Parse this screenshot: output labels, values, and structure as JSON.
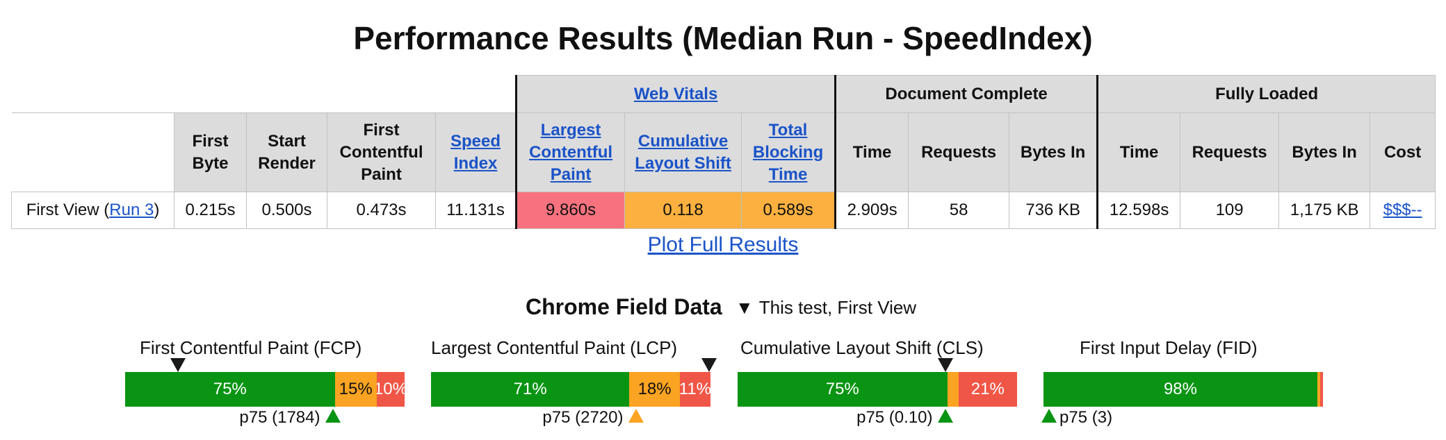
{
  "title": "Performance Results (Median Run - SpeedIndex)",
  "table": {
    "groups": {
      "web_vitals": "Web Vitals",
      "document_complete": "Document Complete",
      "fully_loaded": "Fully Loaded"
    },
    "columns": {
      "first_byte": "First Byte",
      "start_render": "Start Render",
      "first_contentful_paint": "First Contentful Paint",
      "speed_index": "Speed Index",
      "largest_contentful_paint": "Largest Contentful Paint",
      "cumulative_layout_shift": "Cumulative Layout Shift",
      "total_blocking_time": "Total Blocking Time",
      "dc_time": "Time",
      "dc_requests": "Requests",
      "dc_bytes_in": "Bytes In",
      "fl_time": "Time",
      "fl_requests": "Requests",
      "fl_bytes_in": "Bytes In",
      "cost": "Cost"
    },
    "row": {
      "label_prefix": "First View (",
      "run_link": "Run 3",
      "label_suffix": ")",
      "first_byte": "0.215s",
      "start_render": "0.500s",
      "first_contentful_paint": "0.473s",
      "speed_index": "11.131s",
      "largest_contentful_paint": "9.860s",
      "cumulative_layout_shift": "0.118",
      "total_blocking_time": "0.589s",
      "dc_time": "2.909s",
      "dc_requests": "58",
      "dc_bytes_in": "736 KB",
      "fl_time": "12.598s",
      "fl_requests": "109",
      "fl_bytes_in": "1,175 KB",
      "cost": "$$$--"
    }
  },
  "plot_link": "Plot Full Results",
  "field_data": {
    "header": "Chrome Field Data",
    "legend_glyph": "▼",
    "legend_text": "This test, First View",
    "metrics": [
      {
        "name": "First Contentful Paint (FCP)",
        "good": 75,
        "ni": 15,
        "poor": 10,
        "good_label": "75%",
        "ni_label": "15%",
        "poor_label": "10%",
        "p75_label": "p75 (1784)",
        "p75_pos": 0.745,
        "p75_rating": "good",
        "test_pos": 0.19
      },
      {
        "name": "Largest Contentful Paint (LCP)",
        "good": 71,
        "ni": 18,
        "poor": 11,
        "good_label": "71%",
        "ni_label": "18%",
        "poor_label": "11%",
        "p75_label": "p75 (2720)",
        "p75_pos": 0.735,
        "p75_rating": "ni",
        "test_pos": 0.995
      },
      {
        "name": "Cumulative Layout Shift (CLS)",
        "good": 75,
        "ni": 4,
        "poor": 21,
        "good_label": "75%",
        "ni_label": "",
        "poor_label": "21%",
        "p75_label": "p75 (0.10)",
        "p75_pos": 0.745,
        "p75_rating": "good",
        "test_pos": 0.745
      },
      {
        "name": "First Input Delay (FID)",
        "good": 98,
        "ni": 1,
        "poor": 1,
        "good_label": "98%",
        "ni_label": "",
        "poor_label": "",
        "p75_label": "p75 (3)",
        "p75_pos": 0.02,
        "p75_rating": "good",
        "test_pos": null
      }
    ]
  }
}
